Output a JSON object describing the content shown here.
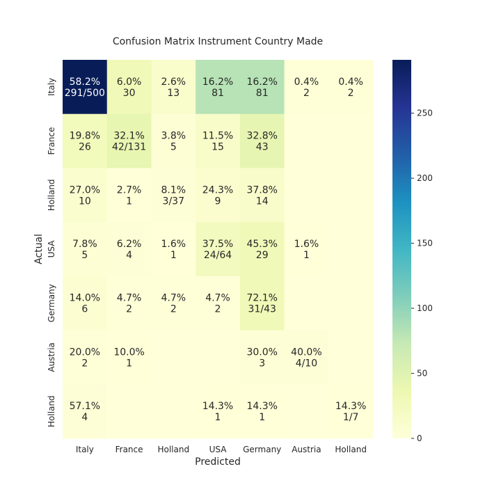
{
  "chart_data": {
    "type": "heatmap",
    "title": "Confusion Matrix Instrument Country Made",
    "xlabel": "Predicted",
    "ylabel": "Actual",
    "x_categories": [
      "Italy",
      "France",
      "Holland",
      "USA",
      "Germany",
      "Austria",
      "Holland"
    ],
    "y_categories": [
      "Italy",
      "France",
      "Holland",
      "USA",
      "Germany",
      "Austria",
      "Holland"
    ],
    "values": [
      [
        291,
        30,
        13,
        81,
        81,
        2,
        2
      ],
      [
        26,
        42,
        5,
        15,
        43,
        0,
        0
      ],
      [
        10,
        1,
        3,
        9,
        14,
        0,
        0
      ],
      [
        5,
        4,
        1,
        24,
        29,
        1,
        0
      ],
      [
        6,
        2,
        2,
        2,
        31,
        0,
        0
      ],
      [
        2,
        1,
        0,
        0,
        3,
        4,
        0
      ],
      [
        4,
        0,
        0,
        1,
        1,
        0,
        1
      ]
    ],
    "labels": [
      [
        [
          "58.2%",
          "291/500"
        ],
        [
          "6.0%",
          "30"
        ],
        [
          "2.6%",
          "13"
        ],
        [
          "16.2%",
          "81"
        ],
        [
          "16.2%",
          "81"
        ],
        [
          "0.4%",
          "2"
        ],
        [
          "0.4%",
          "2"
        ]
      ],
      [
        [
          "19.8%",
          "26"
        ],
        [
          "32.1%",
          "42/131"
        ],
        [
          "3.8%",
          "5"
        ],
        [
          "11.5%",
          "15"
        ],
        [
          "32.8%",
          "43"
        ],
        null,
        null
      ],
      [
        [
          "27.0%",
          "10"
        ],
        [
          "2.7%",
          "1"
        ],
        [
          "8.1%",
          "3/37"
        ],
        [
          "24.3%",
          "9"
        ],
        [
          "37.8%",
          "14"
        ],
        null,
        null
      ],
      [
        [
          "7.8%",
          "5"
        ],
        [
          "6.2%",
          "4"
        ],
        [
          "1.6%",
          "1"
        ],
        [
          "37.5%",
          "24/64"
        ],
        [
          "45.3%",
          "29"
        ],
        [
          "1.6%",
          "1"
        ],
        null
      ],
      [
        [
          "14.0%",
          "6"
        ],
        [
          "4.7%",
          "2"
        ],
        [
          "4.7%",
          "2"
        ],
        [
          "4.7%",
          "2"
        ],
        [
          "72.1%",
          "31/43"
        ],
        null,
        null
      ],
      [
        [
          "20.0%",
          "2"
        ],
        [
          "10.0%",
          "1"
        ],
        null,
        null,
        [
          "30.0%",
          "3"
        ],
        [
          "40.0%",
          "4/10"
        ],
        null
      ],
      [
        [
          "57.1%",
          "4"
        ],
        null,
        null,
        [
          "14.3%",
          "1"
        ],
        [
          "14.3%",
          "1"
        ],
        null,
        [
          "14.3%",
          "1/7"
        ]
      ]
    ],
    "vmin": 0,
    "vmax": 291,
    "colorbar_ticks": [
      0,
      50,
      100,
      150,
      200,
      250
    ],
    "colormap": "YlGnBu",
    "colormap_stops": [
      "#ffffd9",
      "#edf8b1",
      "#c7e9b4",
      "#7fcdbb",
      "#41b6c4",
      "#1d91c0",
      "#225ea8",
      "#253494",
      "#081d58"
    ],
    "grid": false
  }
}
